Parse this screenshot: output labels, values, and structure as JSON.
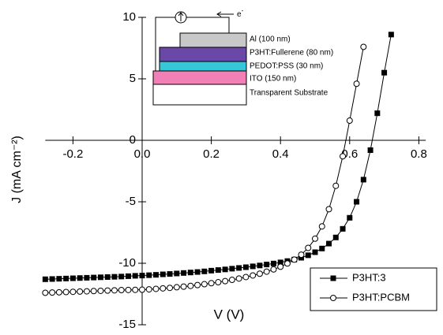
{
  "chart_data": {
    "type": "line",
    "x_label": "V (V)",
    "y_label": "J (mA cm⁻²)",
    "xlim": [
      -0.28,
      0.82
    ],
    "ylim": [
      -15,
      10
    ],
    "xticks": [
      -0.2,
      {
        "value": 0,
        "label": "0.0"
      },
      0.2,
      0.4,
      0.6,
      0.8
    ],
    "yticks": [
      10,
      5,
      0,
      -5,
      -10,
      -15
    ],
    "legend": "lower right",
    "x": [
      -0.28,
      -0.26,
      -0.24,
      -0.22,
      -0.2,
      -0.18,
      -0.16,
      -0.14,
      -0.12,
      -0.1,
      -0.08,
      -0.06,
      -0.04,
      -0.02,
      0,
      0.02,
      0.04,
      0.06,
      0.08,
      0.1,
      0.12,
      0.14,
      0.16,
      0.18,
      0.2,
      0.22,
      0.24,
      0.26,
      0.28,
      0.3,
      0.32,
      0.34,
      0.36,
      0.38,
      0.4,
      0.42,
      0.44,
      0.46,
      0.48,
      0.5,
      0.52,
      0.54,
      0.56,
      0.58,
      0.6,
      0.62,
      0.64,
      0.66,
      0.68,
      0.7,
      0.72
    ],
    "series": [
      {
        "name": "P3HT:3",
        "color": "#000000",
        "marker": "square",
        "values": [
          -11.3,
          -11.28,
          -11.26,
          -11.24,
          -11.22,
          -11.2,
          -11.18,
          -11.16,
          -11.14,
          -11.12,
          -11.1,
          -11.08,
          -11.05,
          -11.02,
          -11.0,
          -10.97,
          -10.94,
          -10.9,
          -10.87,
          -10.83,
          -10.79,
          -10.75,
          -10.71,
          -10.66,
          -10.6,
          -10.55,
          -10.5,
          -10.44,
          -10.38,
          -10.32,
          -10.25,
          -10.18,
          -10.1,
          -10.02,
          -9.93,
          -9.82,
          -9.7,
          -9.55,
          -9.35,
          -9.1,
          -8.8,
          -8.4,
          -7.9,
          -7.2,
          -6.3,
          -5.0,
          -3.2,
          -0.8,
          2.2,
          5.5,
          8.6
        ]
      },
      {
        "name": "P3HT:PCBM",
        "color": "#000000",
        "marker": "circle",
        "values": [
          -12.4,
          -12.38,
          -12.36,
          -12.34,
          -12.32,
          -12.3,
          -12.28,
          -12.26,
          -12.24,
          -12.22,
          -12.2,
          -12.18,
          -12.17,
          -12.16,
          -12.15,
          -12.12,
          -12.08,
          -12.04,
          -12.0,
          -11.95,
          -11.9,
          -11.84,
          -11.77,
          -11.7,
          -11.62,
          -11.54,
          -11.45,
          -11.35,
          -11.24,
          -11.12,
          -10.99,
          -10.85,
          -10.68,
          -10.5,
          -10.28,
          -10.02,
          -9.7,
          -9.3,
          -8.75,
          -8.0,
          -7.0,
          -5.6,
          -3.7,
          -1.3,
          1.6,
          4.6,
          7.6,
          null,
          null,
          null,
          null
        ]
      }
    ],
    "inset": {
      "electron": "e",
      "electron_sup": "-",
      "layers": [
        "Al (100 nm)",
        "P3HT:Fullerene (80 nm)",
        "PEDOT:PSS (30 nm)",
        "ITO (150 nm)",
        "Transparent Substrate"
      ]
    }
  }
}
